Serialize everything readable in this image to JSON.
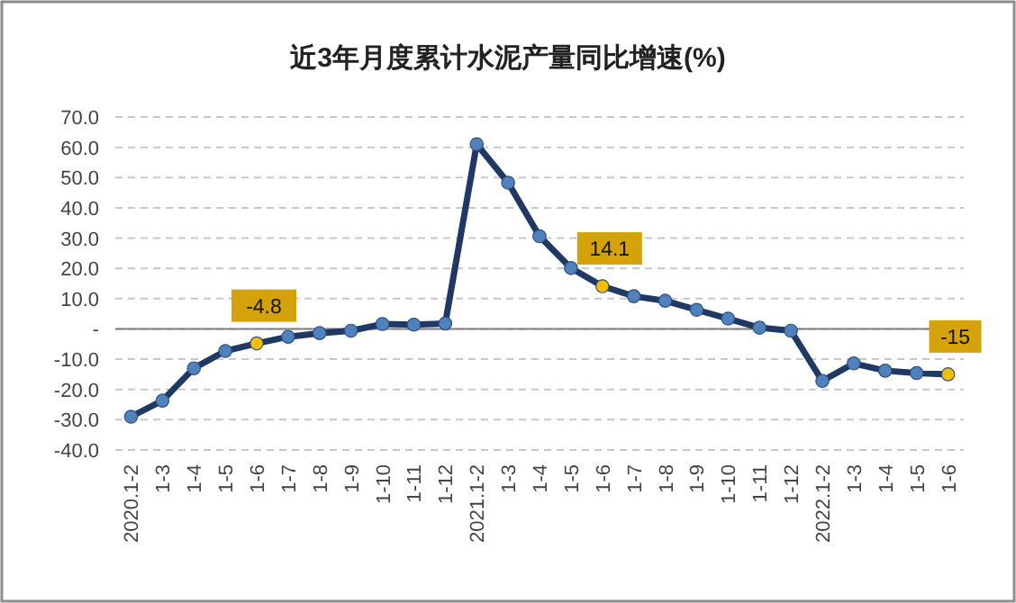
{
  "chart_data": {
    "type": "line",
    "title": "近3年月度累计水泥产量同比增速(%)",
    "categories": [
      "2020.1-2",
      "1-3",
      "1-4",
      "1-5",
      "1-6",
      "1-7",
      "1-8",
      "1-9",
      "1-10",
      "1-11",
      "1-12",
      "2021.1-2",
      "1-3",
      "1-4",
      "1-5",
      "1-6",
      "1-7",
      "1-8",
      "1-9",
      "1-10",
      "1-11",
      "1-12",
      "2022.1-2",
      "1-3",
      "1-4",
      "1-5",
      "1-6"
    ],
    "series": [
      {
        "color": "#1f3864",
        "colors": [
          "#4f81bd",
          "#4f81bd",
          "#4f81bd",
          "#4f81bd",
          "#f0c000",
          "#4f81bd",
          "#4f81bd",
          "#4f81bd",
          "#4f81bd",
          "#4f81bd",
          "#4f81bd",
          "#4f81bd",
          "#4f81bd",
          "#4f81bd",
          "#4f81bd",
          "#f0c000",
          "#4f81bd",
          "#4f81bd",
          "#4f81bd",
          "#4f81bd",
          "#4f81bd",
          "#4f81bd",
          "#4f81bd",
          "#4f81bd",
          "#4f81bd",
          "#4f81bd",
          "#f0c000"
        ],
        "values": [
          -29.0,
          -23.7,
          -13.0,
          -7.3,
          -4.8,
          -2.6,
          -1.4,
          -0.6,
          1.6,
          1.4,
          1.8,
          61.0,
          48.3,
          30.6,
          20.1,
          14.1,
          10.8,
          9.3,
          6.3,
          3.4,
          0.4,
          -0.6,
          -17.2,
          -11.4,
          -13.8,
          -14.6,
          -15
        ],
        "value_labels": [
          null,
          null,
          null,
          null,
          "-4.8",
          null,
          null,
          null,
          null,
          null,
          null,
          null,
          null,
          null,
          null,
          "14.1",
          null,
          null,
          null,
          null,
          null,
          null,
          null,
          null,
          null,
          null,
          "-15"
        ]
      }
    ],
    "ylim": [
      -40,
      70
    ],
    "yticks": [
      {
        "value": 70,
        "label": "70.0"
      },
      {
        "value": 60,
        "label": "60.0"
      },
      {
        "value": 50,
        "label": "50.0"
      },
      {
        "value": 40,
        "label": "40.0"
      },
      {
        "value": 30,
        "label": "30.0"
      },
      {
        "value": 20,
        "label": "20.0"
      },
      {
        "value": 10,
        "label": "10.0"
      },
      {
        "value": 0,
        "label": "-"
      },
      {
        "value": -10,
        "label": "-10.0"
      },
      {
        "value": -20,
        "label": "-20.0"
      },
      {
        "value": -30,
        "label": "-30.0"
      },
      {
        "value": -40,
        "label": "-40.0"
      }
    ],
    "grid": "y",
    "marker": "circle"
  }
}
